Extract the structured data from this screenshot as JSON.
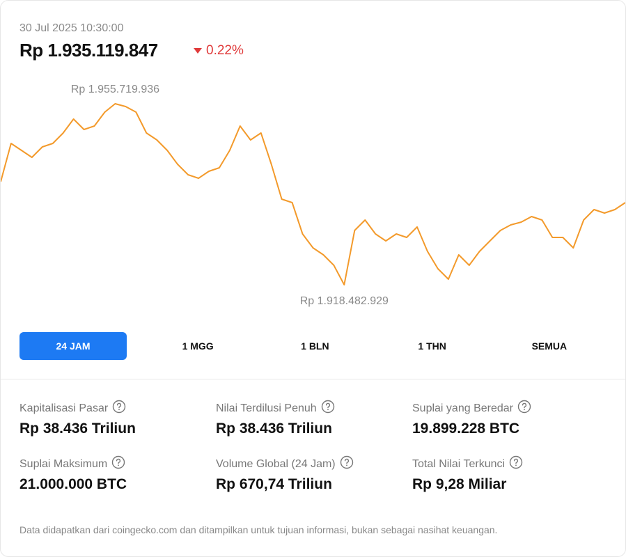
{
  "header": {
    "timestamp": "30 Jul 2025 10:30:00",
    "price": "Rp 1.935.119.847",
    "change": "0.22%"
  },
  "chart_data": {
    "type": "line",
    "color": "#f39a2b",
    "values": [
      1939679000,
      1947556000,
      1946124000,
      1944692000,
      1946840000,
      1947556000,
      1949705000,
      1952569000,
      1950421000,
      1951137000,
      1954001000,
      1955719936,
      1955147000,
      1954001000,
      1949705000,
      1948273000,
      1946124000,
      1943260000,
      1941112000,
      1940396000,
      1941828000,
      1942544000,
      1946124000,
      1951137000,
      1948273000,
      1949705000,
      1943260000,
      1936099000,
      1935383000,
      1928938000,
      1926074000,
      1924642000,
      1922493000,
      1918482929,
      1929654000,
      1931802000,
      1928938000,
      1927506000,
      1928938000,
      1928222000,
      1930370000,
      1925358000,
      1921777000,
      1919629000,
      1924642000,
      1922493000,
      1925358000,
      1927506000,
      1929654000,
      1930800000,
      1931373000,
      1932518000,
      1931802000,
      1928222000,
      1928222000,
      1926074000,
      1931802000,
      1933951000,
      1933235000,
      1933951000,
      1935383000
    ],
    "annotations": [
      {
        "value": 1955719936,
        "label": "Rp 1.955.719.936"
      },
      {
        "value": 1918482929,
        "label": "Rp 1.918.482.929"
      }
    ]
  },
  "tabs": [
    "24 JAM",
    "1 MGG",
    "1 BLN",
    "1 THN",
    "SEMUA"
  ],
  "active_tab": 0,
  "stats": [
    {
      "label": "Kapitalisasi Pasar",
      "value": "Rp 38.436 Triliun"
    },
    {
      "label": "Nilai Terdilusi Penuh",
      "value": "Rp 38.436 Triliun"
    },
    {
      "label": "Suplai yang Beredar",
      "value": "19.899.228 BTC"
    },
    {
      "label": "Suplai Maksimum",
      "value": "21.000.000 BTC"
    },
    {
      "label": "Volume Global (24 Jam)",
      "value": "Rp 670,74 Triliun"
    },
    {
      "label": "Total Nilai Terkunci",
      "value": "Rp 9,28 Miliar"
    }
  ],
  "footer": "Data didapatkan dari coingecko.com dan ditampilkan untuk tujuan informasi, bukan sebagai nasihat keuangan."
}
